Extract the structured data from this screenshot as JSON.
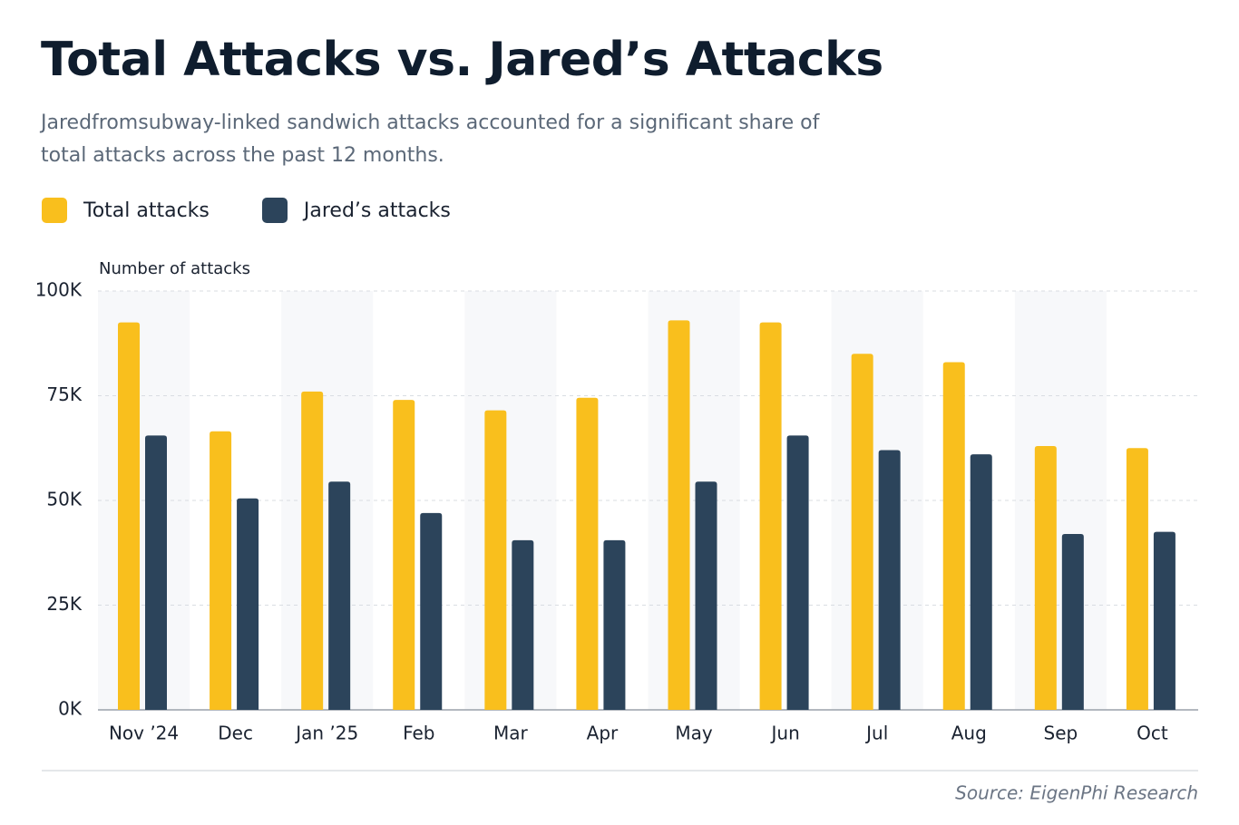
{
  "chart_data": {
    "type": "bar",
    "title": "Total Attacks vs. Jared’s Attacks",
    "subtitle": "Jaredfromsubway-linked sandwich attacks accounted for a significant share of total attacks across the past 12 months.",
    "y_label": "Number of attacks",
    "source": "Source: EigenPhi Research",
    "categories": [
      "Nov ’24",
      "Dec",
      "Jan ’25",
      "Feb",
      "Mar",
      "Apr",
      "May",
      "Jun",
      "Jul",
      "Aug",
      "Sep",
      "Oct"
    ],
    "series": [
      {
        "name": "Total attacks",
        "color": "#f9bf1d",
        "values": [
          92.5,
          66.5,
          76,
          74,
          71.5,
          74.5,
          93,
          92.5,
          85,
          83,
          63,
          62.5
        ]
      },
      {
        "name": "Jared’s attacks",
        "color": "#2c445b",
        "values": [
          65.5,
          50.5,
          54.5,
          47,
          40.5,
          40.5,
          54.5,
          65.5,
          62,
          61,
          42,
          42.5
        ]
      }
    ],
    "ylim": [
      0,
      100
    ],
    "yticks": [
      {
        "value": 0,
        "label": "0K"
      },
      {
        "value": 25,
        "label": "25K"
      },
      {
        "value": 50,
        "label": "50K"
      },
      {
        "value": 75,
        "label": "75K"
      },
      {
        "value": 100,
        "label": "100K"
      }
    ],
    "grid": true,
    "legend": "top-left"
  }
}
